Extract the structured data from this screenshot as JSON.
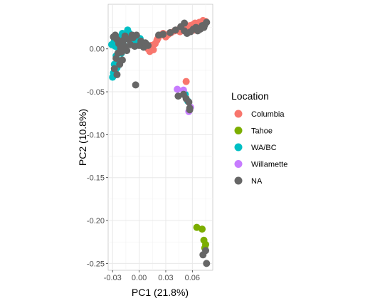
{
  "chart_data": {
    "type": "scatter",
    "xlabel": "PC1 (21.8%)",
    "ylabel": "PC2 (10.8%)",
    "xlim": [
      -0.035,
      0.083
    ],
    "ylim": [
      -0.258,
      0.052
    ],
    "x_ticks": [
      -0.03,
      0.0,
      0.03,
      0.06
    ],
    "x_tick_labels": [
      "-0.03",
      "0.00",
      "0.03",
      "0.06"
    ],
    "y_ticks": [
      0.0,
      -0.05,
      -0.1,
      -0.15,
      -0.2,
      -0.25
    ],
    "y_tick_labels": [
      "0.00",
      "-0.05",
      "-0.10",
      "-0.15",
      "-0.20",
      "-0.25"
    ],
    "grid": true,
    "legend": {
      "title": "Location",
      "placement": "right",
      "entries": [
        {
          "name": "Columbia",
          "color": "#F8766D"
        },
        {
          "name": "Tahoe",
          "color": "#7CAE00"
        },
        {
          "name": "WA/BC",
          "color": "#00BFC4"
        },
        {
          "name": "Willamette",
          "color": "#C77CFF"
        },
        {
          "name": "NA",
          "color": "#666666"
        }
      ]
    },
    "series": [
      {
        "name": "Columbia",
        "color": "#F8766D",
        "points": [
          [
            0.008,
            0.005
          ],
          [
            0.01,
            0.0
          ],
          [
            0.012,
            -0.003
          ],
          [
            0.014,
            0.004
          ],
          [
            0.016,
            -0.001
          ],
          [
            0.018,
            0.006
          ],
          [
            0.02,
            0.01
          ],
          [
            0.021,
            0.012
          ],
          [
            0.024,
            0.016
          ],
          [
            0.027,
            0.018
          ],
          [
            0.03,
            0.014
          ],
          [
            0.033,
            0.017
          ],
          [
            0.036,
            0.019
          ],
          [
            0.04,
            0.021
          ],
          [
            0.043,
            0.022
          ],
          [
            0.046,
            0.02
          ],
          [
            0.049,
            0.023
          ],
          [
            0.052,
            0.021
          ],
          [
            0.055,
            0.026
          ],
          [
            0.058,
            0.024
          ],
          [
            0.06,
            0.028
          ],
          [
            0.063,
            0.03
          ],
          [
            0.065,
            0.027
          ],
          [
            0.068,
            0.031
          ],
          [
            0.07,
            0.029
          ],
          [
            0.072,
            0.033
          ],
          [
            0.074,
            0.03
          ],
          [
            0.075,
            0.032
          ],
          [
            0.067,
            0.025
          ],
          [
            0.062,
            0.022
          ],
          [
            0.057,
            0.027
          ],
          [
            0.053,
            -0.038
          ]
        ]
      },
      {
        "name": "Tahoe",
        "color": "#7CAE00",
        "points": [
          [
            0.065,
            -0.208
          ],
          [
            0.071,
            -0.21
          ],
          [
            0.073,
            -0.223
          ],
          [
            0.075,
            -0.228
          ],
          [
            0.074,
            -0.232
          ]
        ]
      },
      {
        "name": "WA/BC",
        "color": "#00BFC4",
        "points": [
          [
            -0.03,
            -0.033
          ],
          [
            -0.029,
            -0.028
          ],
          [
            -0.027,
            -0.025
          ],
          [
            -0.026,
            -0.03
          ],
          [
            -0.025,
            -0.022
          ],
          [
            -0.028,
            -0.018
          ],
          [
            -0.024,
            -0.013
          ],
          [
            -0.026,
            -0.008
          ],
          [
            -0.023,
            -0.003
          ],
          [
            -0.027,
            0.003
          ],
          [
            -0.022,
            0.008
          ],
          [
            -0.025,
            0.014
          ],
          [
            -0.021,
            0.012
          ],
          [
            -0.019,
            0.018
          ],
          [
            -0.017,
            0.016
          ],
          [
            -0.015,
            0.014
          ],
          [
            -0.013,
            0.022
          ],
          [
            -0.011,
            0.018
          ],
          [
            -0.009,
            0.012
          ],
          [
            -0.006,
            0.015
          ],
          [
            -0.004,
            0.01
          ],
          [
            -0.002,
            0.008
          ],
          [
            0.001,
            0.012
          ],
          [
            0.003,
            0.006
          ],
          [
            -0.031,
            0.005
          ],
          [
            -0.028,
            0.01
          ],
          [
            -0.018,
            0.005
          ],
          [
            -0.02,
            -0.005
          ],
          [
            0.052,
            -0.053
          ],
          [
            0.055,
            -0.061
          ]
        ]
      },
      {
        "name": "Willamette",
        "color": "#C77CFF",
        "points": [
          [
            0.043,
            -0.047
          ],
          [
            0.05,
            -0.048
          ],
          [
            0.058,
            -0.068
          ],
          [
            0.056,
            -0.073
          ]
        ]
      },
      {
        "name": "NA",
        "color": "#666666",
        "points": [
          [
            -0.029,
            0.014
          ],
          [
            -0.027,
            0.016
          ],
          [
            -0.025,
            0.011
          ],
          [
            -0.023,
            0.006
          ],
          [
            -0.021,
            0.001
          ],
          [
            -0.024,
            -0.005
          ],
          [
            -0.026,
            -0.011
          ],
          [
            -0.022,
            -0.018
          ],
          [
            -0.028,
            -0.023
          ],
          [
            -0.025,
            -0.03
          ],
          [
            -0.02,
            -0.004
          ],
          [
            -0.018,
            0.01
          ],
          [
            -0.016,
            0.003
          ],
          [
            -0.014,
            -0.002
          ],
          [
            -0.012,
            0.011
          ],
          [
            -0.01,
            0.005
          ],
          [
            -0.008,
            0.016
          ],
          [
            -0.007,
            0.013
          ],
          [
            -0.005,
            0.003
          ],
          [
            -0.003,
            0.016
          ],
          [
            0.0,
            0.004
          ],
          [
            0.002,
            0.009
          ],
          [
            0.005,
            0.002
          ],
          [
            0.007,
            0.007
          ],
          [
            0.01,
            0.004
          ],
          [
            -0.016,
            0.015
          ],
          [
            -0.019,
            -0.013
          ],
          [
            -0.004,
            -0.042
          ],
          [
            0.022,
            0.016
          ],
          [
            0.027,
            0.017
          ],
          [
            0.035,
            0.019
          ],
          [
            0.041,
            0.022
          ],
          [
            0.047,
            0.026
          ],
          [
            0.051,
            0.021
          ],
          [
            0.054,
            0.018
          ],
          [
            0.058,
            0.02
          ],
          [
            0.061,
            0.023
          ],
          [
            0.064,
            0.025
          ],
          [
            0.066,
            0.021
          ],
          [
            0.069,
            0.023
          ],
          [
            0.071,
            0.027
          ],
          [
            0.073,
            0.025
          ],
          [
            0.076,
            0.031
          ],
          [
            0.074,
            0.028
          ],
          [
            0.051,
            0.03
          ],
          [
            0.044,
            -0.055
          ],
          [
            0.05,
            -0.053
          ],
          [
            0.053,
            -0.058
          ],
          [
            0.056,
            -0.062
          ],
          [
            0.057,
            -0.069
          ],
          [
            0.057,
            -0.071
          ],
          [
            0.072,
            -0.24
          ],
          [
            0.076,
            -0.25
          ],
          [
            0.075,
            -0.235
          ]
        ]
      }
    ]
  }
}
